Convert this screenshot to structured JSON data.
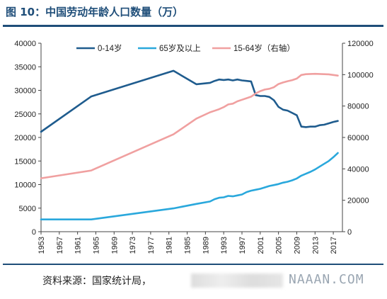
{
  "header": {
    "title": "图 10：中国劳动年龄人口数量（万）"
  },
  "footer": {
    "source": "资料来源：国家统计局，",
    "watermark": "NAAAN.COM"
  },
  "chart_data": {
    "type": "line",
    "title": "图 10：中国劳动年龄人口数量（万）",
    "x_ticks": [
      "1953",
      "1957",
      "1961",
      "1965",
      "1969",
      "1973",
      "1977",
      "1981",
      "1985",
      "1989",
      "1993",
      "1997",
      "2001",
      "2005",
      "2009",
      "2013",
      "2017"
    ],
    "xlim": [
      1953,
      2019
    ],
    "left_axis": {
      "ylim": [
        0,
        40000
      ],
      "ticks": [
        "0",
        "5000",
        "10000",
        "15000",
        "20000",
        "25000",
        "30000",
        "35000",
        "40000"
      ]
    },
    "right_axis": {
      "ylim": [
        0,
        120000
      ],
      "ticks": [
        "0",
        "20000",
        "40000",
        "60000",
        "80000",
        "100000",
        "120000"
      ]
    },
    "legend_position": "top",
    "series": [
      {
        "name": "0-14岁",
        "axis": "left",
        "color": "#1f5c8e",
        "x": [
          1953,
          1964,
          1982,
          1987,
          1990,
          1991,
          1992,
          1993,
          1994,
          1995,
          1996,
          1997,
          1998,
          1999,
          2000,
          2001,
          2002,
          2003,
          2004,
          2005,
          2006,
          2007,
          2008,
          2009,
          2010,
          2011,
          2012,
          2013,
          2014,
          2015,
          2016,
          2017,
          2018
        ],
        "y": [
          21200,
          28700,
          34150,
          31300,
          31600,
          32000,
          32300,
          32200,
          32300,
          32100,
          32300,
          32100,
          32000,
          31900,
          29000,
          28800,
          28800,
          28600,
          27900,
          26500,
          25900,
          25700,
          25200,
          24700,
          22300,
          22200,
          22300,
          22300,
          22600,
          22700,
          23000,
          23300,
          23500
        ]
      },
      {
        "name": "65岁及以上",
        "axis": "left",
        "color": "#2aa8dc",
        "x": [
          1953,
          1964,
          1982,
          1987,
          1990,
          1991,
          1992,
          1993,
          1994,
          1995,
          1996,
          1997,
          1998,
          1999,
          2000,
          2001,
          2002,
          2003,
          2004,
          2005,
          2006,
          2007,
          2008,
          2009,
          2010,
          2011,
          2012,
          2013,
          2014,
          2015,
          2016,
          2017,
          2018
        ],
        "y": [
          2600,
          2600,
          4950,
          5900,
          6400,
          6900,
          7200,
          7300,
          7600,
          7500,
          7700,
          7900,
          8400,
          8700,
          8900,
          9100,
          9400,
          9700,
          9900,
          10100,
          10400,
          10600,
          10900,
          11300,
          11900,
          12300,
          12700,
          13200,
          13800,
          14400,
          15000,
          15800,
          16700
        ]
      },
      {
        "name": "15-64岁（右轴）",
        "axis": "right",
        "color": "#f0a0a0",
        "x": [
          1953,
          1964,
          1982,
          1987,
          1990,
          1991,
          1992,
          1993,
          1994,
          1995,
          1996,
          1997,
          1998,
          1999,
          2000,
          2001,
          2002,
          2003,
          2004,
          2005,
          2006,
          2007,
          2008,
          2009,
          2010,
          2011,
          2012,
          2013,
          2014,
          2015,
          2016,
          2017,
          2018
        ],
        "y": [
          34000,
          39000,
          62000,
          72000,
          76000,
          77000,
          78000,
          79300,
          81000,
          81500,
          83000,
          84000,
          85000,
          86000,
          88000,
          89500,
          90500,
          91000,
          92000,
          94000,
          95000,
          95800,
          96500,
          97500,
          99800,
          100300,
          100400,
          100500,
          100400,
          100300,
          100200,
          99800,
          99400
        ]
      }
    ]
  }
}
